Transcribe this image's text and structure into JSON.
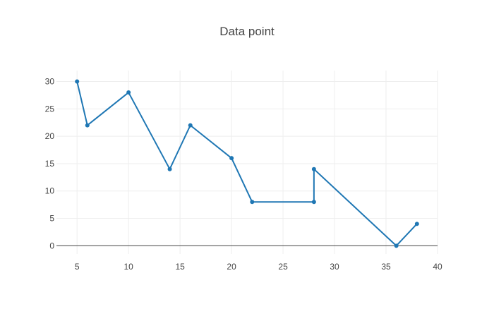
{
  "chart_data": {
    "type": "line",
    "title": "Data point",
    "xlabel": "",
    "ylabel": "",
    "xlim": [
      3,
      40
    ],
    "ylim": [
      -1.5,
      32
    ],
    "xticks": [
      5,
      10,
      15,
      20,
      25,
      30,
      35,
      40
    ],
    "yticks": [
      0,
      5,
      10,
      15,
      20,
      25,
      30
    ],
    "grid": true,
    "series": [
      {
        "color": "#1f77b4",
        "mode": "lines+markers",
        "x": [
          5,
          6,
          10,
          14,
          16,
          20,
          22,
          28,
          28,
          36,
          38
        ],
        "y": [
          30,
          22,
          28,
          14,
          22,
          16,
          8,
          8,
          14,
          0,
          4
        ]
      }
    ]
  }
}
